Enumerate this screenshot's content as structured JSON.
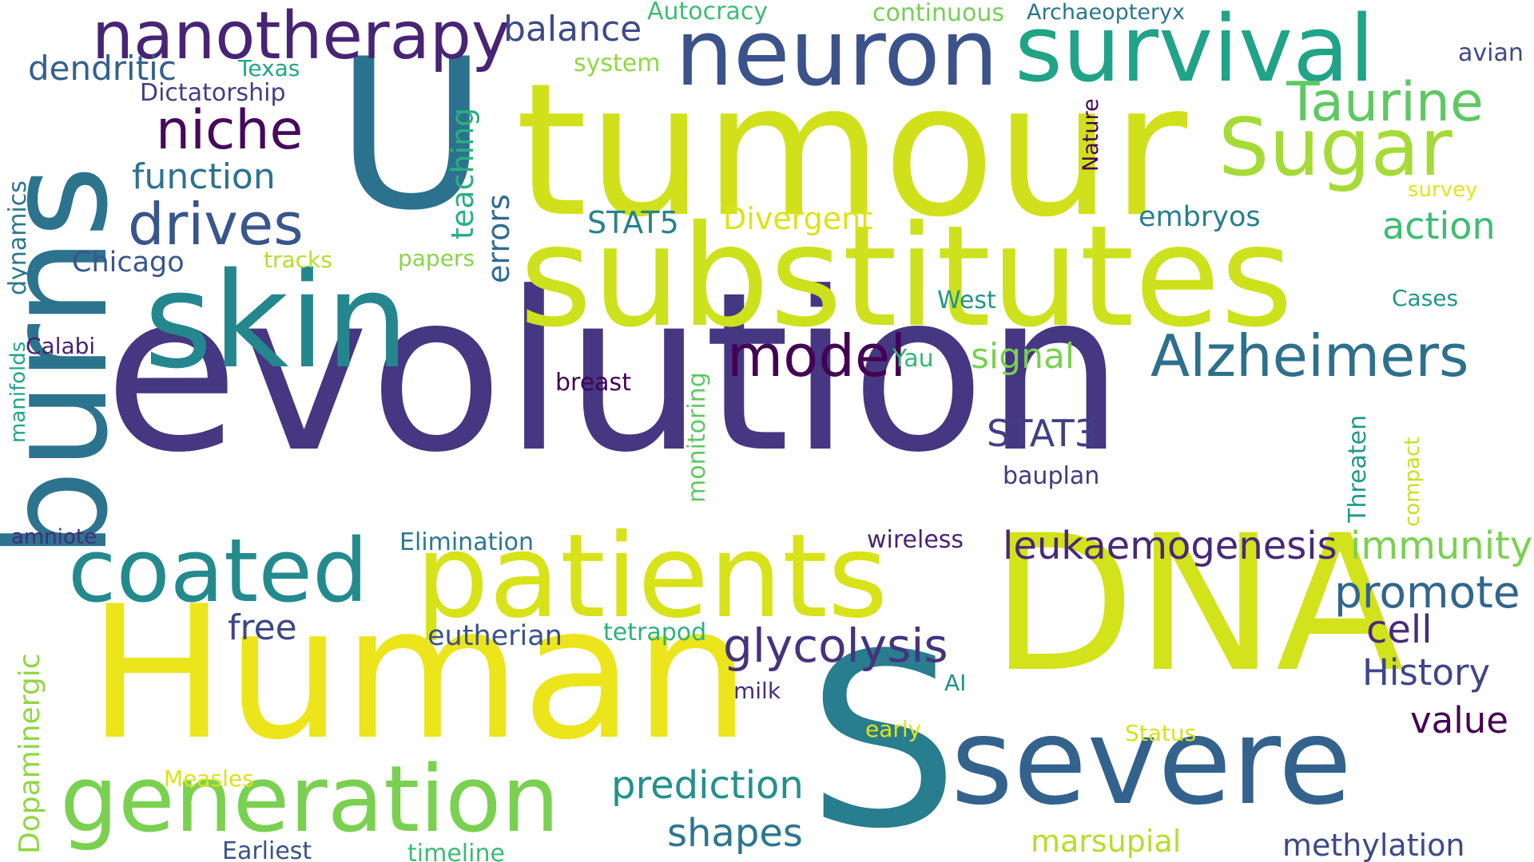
{
  "words": [
    {
      "text": "evolution",
      "color": "#453781"
    },
    {
      "text": "DNA",
      "color": "#d2e21b"
    },
    {
      "text": "Human",
      "color": "#ece51b"
    },
    {
      "text": "tumour",
      "color": "#d0e11c"
    },
    {
      "text": "S",
      "color": "#287d8e"
    },
    {
      "text": "U",
      "color": "#2c728e"
    },
    {
      "text": "substitutes",
      "color": "#cde11d"
    },
    {
      "text": "burns",
      "color": "#2c738e"
    },
    {
      "text": "skin",
      "color": "#24878e"
    },
    {
      "text": "severe",
      "color": "#33628d"
    },
    {
      "text": "patients",
      "color": "#d8e219"
    },
    {
      "text": "neuron",
      "color": "#3b528b"
    },
    {
      "text": "survival",
      "color": "#20a386"
    },
    {
      "text": "generation",
      "color": "#7ad151"
    },
    {
      "text": "coated",
      "color": "#238a8d"
    },
    {
      "text": "nanotherapy",
      "color": "#482475"
    },
    {
      "text": "Sugar",
      "color": "#a5db36"
    },
    {
      "text": "Alzheimers",
      "color": "#2d708e"
    },
    {
      "text": "Taurine",
      "color": "#5ec962"
    },
    {
      "text": "model",
      "color": "#440154"
    },
    {
      "text": "drives",
      "color": "#39558c"
    },
    {
      "text": "niche",
      "color": "#46085c"
    },
    {
      "text": "glycolysis",
      "color": "#46337e"
    },
    {
      "text": "promote",
      "color": "#31668e"
    },
    {
      "text": "leukaemogenesis",
      "color": "#482878"
    },
    {
      "text": "immunity",
      "color": "#7ad151"
    },
    {
      "text": "prediction",
      "color": "#21918c"
    },
    {
      "text": "shapes",
      "color": "#2a778e"
    },
    {
      "text": "STAT3",
      "color": "#423f85"
    },
    {
      "text": "History",
      "color": "#404688"
    },
    {
      "text": "action",
      "color": "#3dbc74"
    },
    {
      "text": "cell",
      "color": "#472d7b"
    },
    {
      "text": "value",
      "color": "#440154"
    },
    {
      "text": "function",
      "color": "#2c728e"
    },
    {
      "text": "dendritic",
      "color": "#34608d"
    },
    {
      "text": "balance",
      "color": "#3e4a89"
    },
    {
      "text": "signal",
      "color": "#7ad151"
    },
    {
      "text": "methylation",
      "color": "#3e4989"
    },
    {
      "text": "free",
      "color": "#3f4788"
    },
    {
      "text": "Dopaminergic",
      "color": "#8fd744"
    },
    {
      "text": "marsupial",
      "color": "#b5de2b"
    },
    {
      "text": "errors",
      "color": "#2f6c8e"
    },
    {
      "text": "teaching",
      "color": "#2ab07f"
    },
    {
      "text": "Divergent",
      "color": "#dde318"
    },
    {
      "text": "STAT5",
      "color": "#26828e"
    },
    {
      "text": "eutherian",
      "color": "#3b528b"
    },
    {
      "text": "embryos",
      "color": "#27808e"
    },
    {
      "text": "Chicago",
      "color": "#39568c"
    },
    {
      "text": "dynamics",
      "color": "#2a768e"
    },
    {
      "text": "Elimination",
      "color": "#2a788e"
    },
    {
      "text": "bauplan",
      "color": "#453882"
    },
    {
      "text": "tetrapod",
      "color": "#2db27d"
    },
    {
      "text": "wireless",
      "color": "#482475"
    },
    {
      "text": "monitoring",
      "color": "#5ec962"
    },
    {
      "text": "Threaten",
      "color": "#1f988b"
    },
    {
      "text": "Dictatorship",
      "color": "#433e85"
    },
    {
      "text": "Earliest",
      "color": "#3b528b"
    },
    {
      "text": "timeline",
      "color": "#3bbb75"
    },
    {
      "text": "system",
      "color": "#90d743"
    },
    {
      "text": "Archaeopteryx",
      "color": "#2b758e"
    },
    {
      "text": "Autocracy",
      "color": "#3fbc73"
    },
    {
      "text": "continuous",
      "color": "#75d054"
    },
    {
      "text": "avian",
      "color": "#3e4989"
    },
    {
      "text": "Texas",
      "color": "#22a785"
    },
    {
      "text": "tracks",
      "color": "#b5de2b"
    },
    {
      "text": "papers",
      "color": "#86d549"
    },
    {
      "text": "West",
      "color": "#1f958b"
    },
    {
      "text": "Cases",
      "color": "#1f978b"
    },
    {
      "text": "Calabi",
      "color": "#482071"
    },
    {
      "text": "Yau",
      "color": "#35b779"
    },
    {
      "text": "breast",
      "color": "#440154"
    },
    {
      "text": "manifolds",
      "color": "#21a685"
    },
    {
      "text": "Nature",
      "color": "#440154"
    },
    {
      "text": "survey",
      "color": "#e7e419"
    },
    {
      "text": "compact",
      "color": "#c8e020"
    },
    {
      "text": "amniote",
      "color": "#482878"
    },
    {
      "text": "milk",
      "color": "#472d7b"
    },
    {
      "text": "AI",
      "color": "#21918c"
    },
    {
      "text": "early",
      "color": "#e2e418"
    },
    {
      "text": "Status",
      "color": "#d5e21a"
    },
    {
      "text": "Measles",
      "color": "#dae319"
    }
  ]
}
